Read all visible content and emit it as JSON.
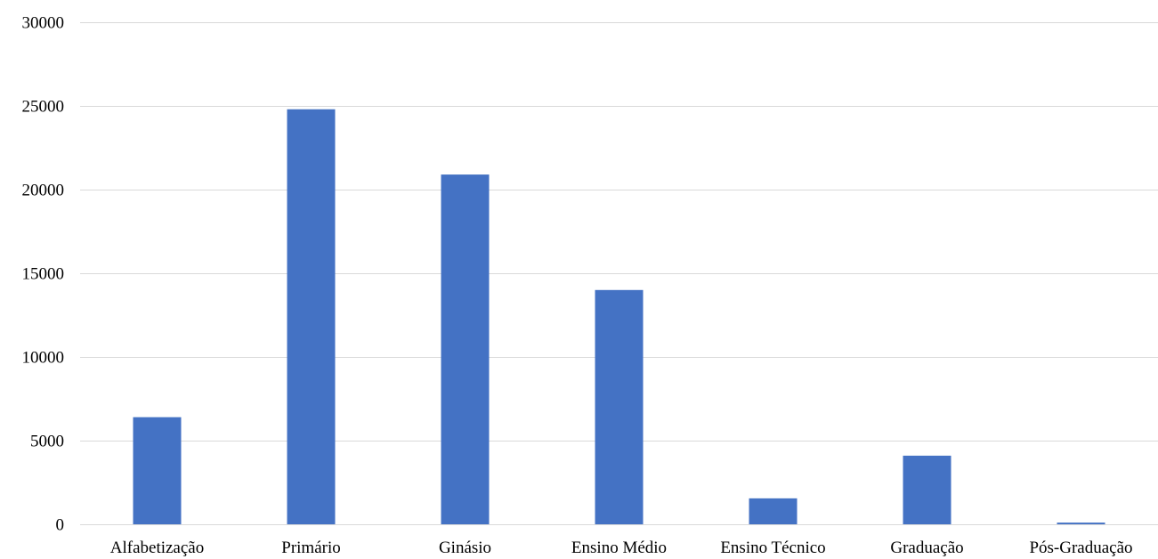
{
  "chart_data": {
    "type": "bar",
    "categories": [
      "Alfabetização",
      "Primário",
      "Ginásio",
      "Ensino Médio",
      "Ensino Técnico",
      "Graduação",
      "Pós-Graduação"
    ],
    "values": [
      6400,
      24800,
      20900,
      14000,
      1550,
      4100,
      100
    ],
    "title": "",
    "xlabel": "",
    "ylabel": "",
    "ylim": [
      0,
      30000
    ],
    "yticks": [
      0,
      5000,
      10000,
      15000,
      20000,
      25000,
      30000
    ],
    "grid": true,
    "legend": "none",
    "bar_color": "#4472c4"
  }
}
